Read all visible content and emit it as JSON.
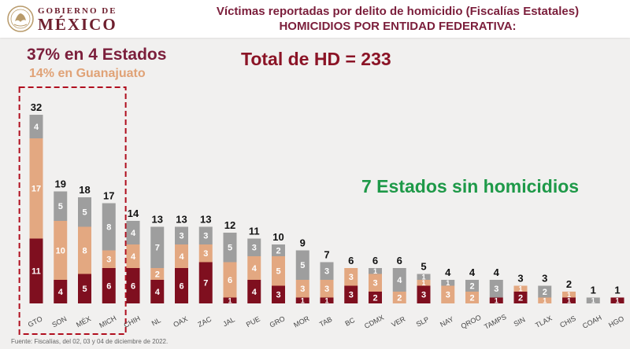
{
  "header": {
    "logo_line1": "GOBIERNO DE",
    "logo_line2": "MÉXICO",
    "title_line1": "Víctimas reportadas por delito de homicidio (Fiscalías Estatales)",
    "title_line2": "HOMICIDIOS POR ENTIDAD FEDERATIVA:"
  },
  "annotations": {
    "pct_four_states": "37% en 4 Estados",
    "pct_guanajuato": "14% en Guanajuato",
    "total": "Total de HD = 233",
    "states_without": "7 Estados sin homicidios"
  },
  "footer": {
    "source": "Fuente: Fiscalías, del  02, 03  y 04 de diciembre de 2022."
  },
  "colors": {
    "series_bottom": "#7f0f1f",
    "series_middle": "#e3a881",
    "series_top": "#9e9e9e",
    "highlight_box": "#b00e1e"
  },
  "chart_data": {
    "type": "bar",
    "stacked": true,
    "categories": [
      "GTO",
      "SON",
      "MÉX",
      "MICH",
      "CHIH",
      "NL",
      "OAX",
      "ZAC",
      "JAL",
      "PUE",
      "GRO",
      "MOR",
      "TAB",
      "BC",
      "CDMX",
      "VER",
      "SLP",
      "NAY",
      "QROO",
      "TAMPS",
      "SIN",
      "TLAX",
      "CHIS",
      "COAH",
      "HGO"
    ],
    "totals": [
      32,
      19,
      18,
      17,
      14,
      13,
      13,
      13,
      12,
      11,
      10,
      9,
      7,
      6,
      6,
      6,
      5,
      4,
      4,
      4,
      3,
      3,
      2,
      1,
      1
    ],
    "series": [
      {
        "color": "#7f0f1f",
        "values": [
          11,
          4,
          5,
          6,
          6,
          4,
          6,
          7,
          1,
          4,
          3,
          1,
          1,
          3,
          2,
          0,
          3,
          0,
          0,
          1,
          2,
          0,
          1,
          0,
          1
        ]
      },
      {
        "color": "#e3a881",
        "values": [
          17,
          10,
          8,
          3,
          4,
          2,
          4,
          3,
          6,
          4,
          5,
          3,
          3,
          3,
          3,
          2,
          1,
          3,
          2,
          0,
          1,
          1,
          1,
          0,
          0
        ]
      },
      {
        "color": "#9e9e9e",
        "values": [
          4,
          5,
          5,
          8,
          4,
          7,
          3,
          3,
          5,
          3,
          2,
          5,
          3,
          0,
          1,
          4,
          1,
          1,
          2,
          3,
          0,
          2,
          0,
          1,
          0
        ]
      }
    ],
    "highlight_categories": [
      "GTO",
      "SON",
      "MÉX",
      "MICH"
    ],
    "ylim": [
      0,
      32
    ],
    "grid": false,
    "legend": "none"
  }
}
